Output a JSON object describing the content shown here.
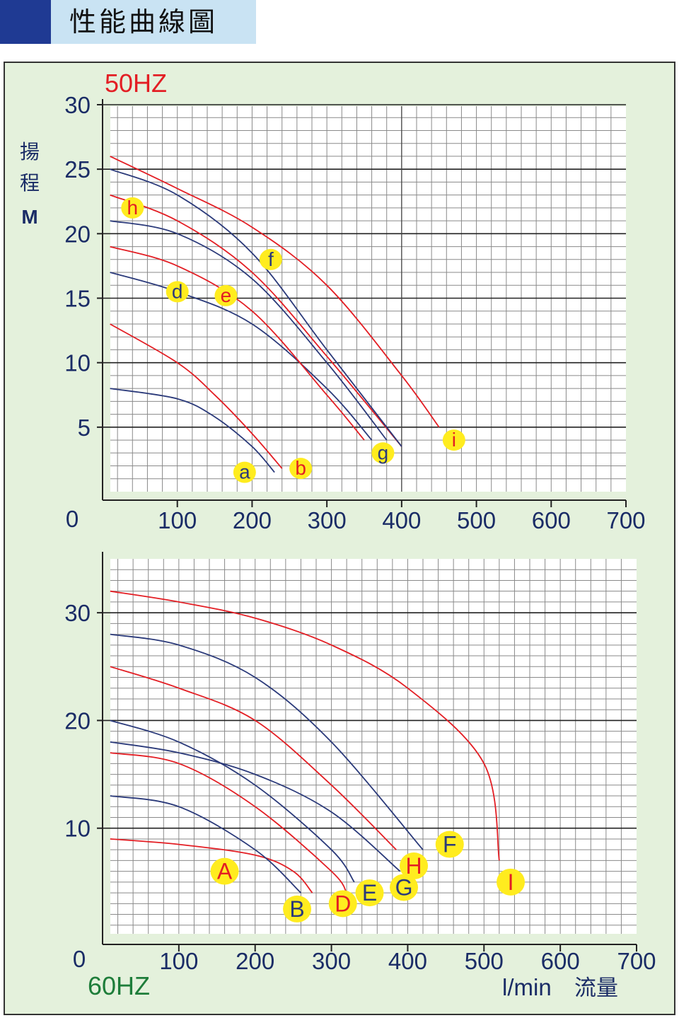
{
  "page_title": "性能曲線圖",
  "colors": {
    "banner_block": "#1f3a93",
    "banner_bar": "#c9e3f3",
    "panel_bg": "#e4f1dc",
    "red_curve": "#e31e24",
    "blue_curve": "#2b3a7a",
    "label_bubble": "#ffec1f",
    "freq_50": "#e31e24",
    "freq_60": "#1e7d3a"
  },
  "axis_labels": {
    "y_label_line1": "揚",
    "y_label_line2": "程",
    "y_label_unit": "M",
    "x_unit": "l/min",
    "x_unit_cjk": "流量"
  },
  "chart_data": [
    {
      "type": "line",
      "title": "50HZ",
      "xlabel": "",
      "ylabel": "揚程 M",
      "xlim": [
        0,
        700
      ],
      "ylim": [
        0,
        30
      ],
      "x_ticks": [
        "0",
        "100",
        "200",
        "300",
        "400",
        "500",
        "600",
        "700"
      ],
      "y_ticks": [
        "5",
        "10",
        "15",
        "20",
        "25",
        "30"
      ],
      "grid": true,
      "series": [
        {
          "name": "a",
          "color": "blue",
          "x": [
            10,
            100,
            150,
            200,
            230
          ],
          "y": [
            8,
            7.2,
            5.8,
            3.5,
            1.5
          ],
          "label_pos": [
            190,
            1.5
          ]
        },
        {
          "name": "b",
          "color": "red",
          "x": [
            10,
            100,
            150,
            200,
            240
          ],
          "y": [
            13,
            10,
            7.5,
            4.5,
            1.8
          ],
          "label_pos": [
            265,
            1.8
          ]
        },
        {
          "name": "d",
          "color": "blue",
          "x": [
            10,
            100,
            200,
            300,
            360
          ],
          "y": [
            17,
            15.5,
            13,
            8,
            4
          ],
          "label_pos": [
            100,
            15.5
          ]
        },
        {
          "name": "e",
          "color": "red",
          "x": [
            10,
            100,
            200,
            300,
            350
          ],
          "y": [
            19,
            17.5,
            14,
            7.5,
            4
          ],
          "label_pos": [
            165,
            15.2
          ]
        },
        {
          "name": "h",
          "color": "red",
          "x": [
            10,
            100,
            200,
            300,
            400
          ],
          "y": [
            23,
            21,
            17,
            10.5,
            3.5
          ],
          "label_pos": [
            40,
            22
          ]
        },
        {
          "name": "g",
          "color": "blue",
          "x": [
            10,
            100,
            200,
            300,
            380
          ],
          "y": [
            21,
            20,
            16.5,
            10,
            4
          ],
          "label_pos": [
            375,
            3
          ]
        },
        {
          "name": "f",
          "color": "blue",
          "x": [
            10,
            100,
            200,
            300,
            400
          ],
          "y": [
            25,
            23,
            18.5,
            11,
            3.5
          ],
          "label_pos": [
            225,
            18
          ]
        },
        {
          "name": "i",
          "color": "red",
          "x": [
            10,
            100,
            200,
            300,
            400,
            450
          ],
          "y": [
            26,
            23.5,
            20.5,
            16,
            9,
            5
          ],
          "label_pos": [
            470,
            4
          ]
        }
      ]
    },
    {
      "type": "line",
      "title": "60HZ",
      "xlabel": "l/min 流量",
      "ylabel": "",
      "xlim": [
        0,
        700
      ],
      "ylim": [
        0,
        35
      ],
      "x_ticks": [
        "0",
        "100",
        "200",
        "300",
        "400",
        "500",
        "600",
        "700"
      ],
      "y_ticks": [
        "10",
        "20",
        "30"
      ],
      "grid": true,
      "series": [
        {
          "name": "A",
          "color": "red",
          "x": [
            10,
            100,
            200,
            250,
            275
          ],
          "y": [
            9,
            8.5,
            7.5,
            6,
            4
          ],
          "label_pos": [
            160,
            6
          ]
        },
        {
          "name": "B",
          "color": "blue",
          "x": [
            10,
            100,
            200,
            260
          ],
          "y": [
            13,
            12,
            8,
            4
          ],
          "label_pos": [
            255,
            2.5
          ]
        },
        {
          "name": "D",
          "color": "red",
          "x": [
            10,
            100,
            200,
            300,
            320
          ],
          "y": [
            17,
            16,
            12,
            6,
            4
          ],
          "label_pos": [
            315,
            3
          ]
        },
        {
          "name": "E",
          "color": "blue",
          "x": [
            10,
            100,
            200,
            300,
            330
          ],
          "y": [
            20,
            18,
            14,
            8,
            5
          ],
          "label_pos": [
            350,
            4
          ]
        },
        {
          "name": "G",
          "color": "blue",
          "x": [
            10,
            100,
            200,
            300,
            390
          ],
          "y": [
            18,
            17,
            15,
            11.5,
            6
          ],
          "label_pos": [
            395,
            4.5
          ]
        },
        {
          "name": "H",
          "color": "red",
          "x": [
            10,
            100,
            200,
            300,
            385
          ],
          "y": [
            25,
            23,
            20,
            14,
            8
          ],
          "label_pos": [
            408,
            6.5
          ]
        },
        {
          "name": "F",
          "color": "blue",
          "x": [
            10,
            100,
            200,
            300,
            420
          ],
          "y": [
            28,
            27,
            24,
            18,
            8
          ],
          "label_pos": [
            455,
            8.5
          ]
        },
        {
          "name": "I",
          "color": "red",
          "x": [
            10,
            100,
            200,
            300,
            400,
            500,
            520
          ],
          "y": [
            32,
            31,
            29.5,
            27,
            23,
            16,
            7
          ],
          "label_pos": [
            535,
            5
          ]
        }
      ]
    }
  ]
}
